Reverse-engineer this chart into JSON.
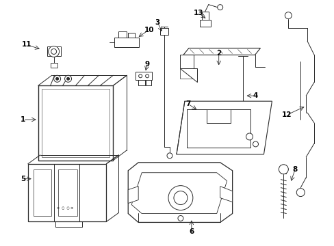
{
  "background_color": "#ffffff",
  "line_color": "#2a2a2a",
  "fig_width": 4.89,
  "fig_height": 3.6,
  "label_fontsize": 7.5
}
